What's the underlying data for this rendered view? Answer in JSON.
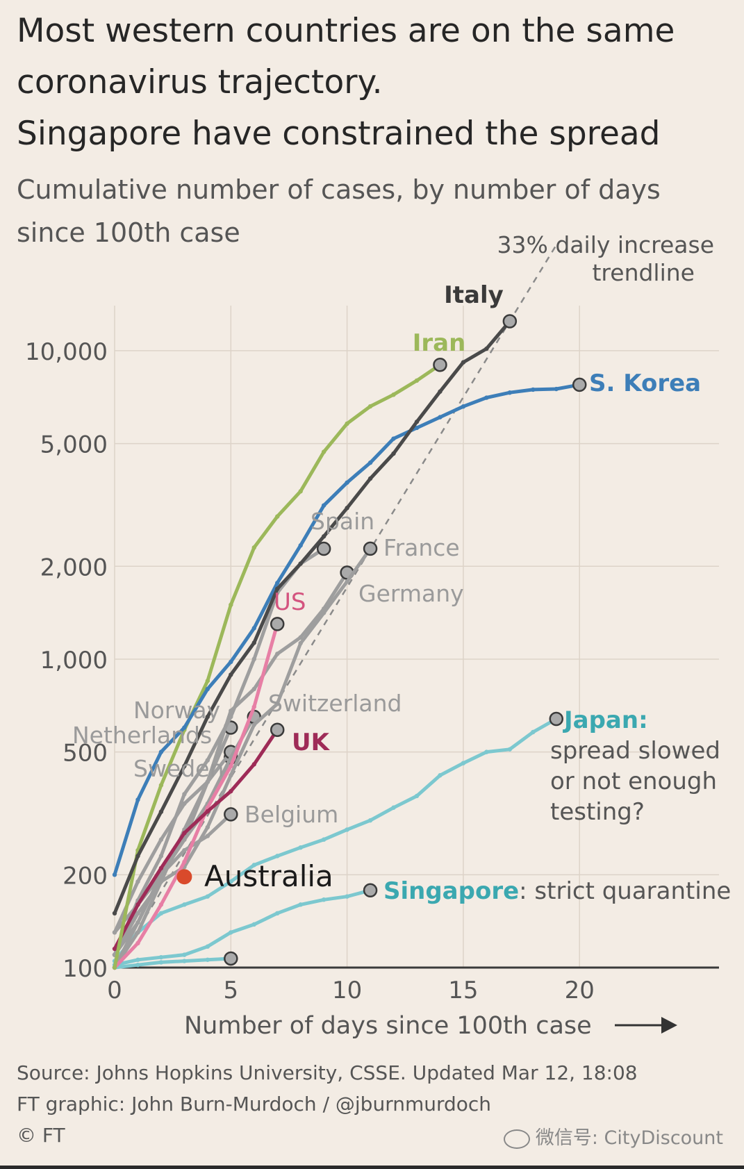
{
  "title_lines": [
    "Most western countries are on the same",
    "coronavirus trajectory.",
    "Singapore have constrained the spread"
  ],
  "subtitle_lines": [
    "Cumulative number of cases, by number of days",
    "since 100th case"
  ],
  "source_lines": [
    "Source: Johns Hopkins University, CSSE. Updated Mar 12, 18:08",
    "FT graphic: John Burn-Murdoch / @jburnmurdoch",
    "© FT"
  ],
  "watermark": "微信号: CityDiscount",
  "chart_data": {
    "type": "line",
    "xlabel": "Number of days since 100th case",
    "ylabel": "",
    "x_scale": "linear",
    "y_scale": "log",
    "xlim": [
      0,
      26
    ],
    "ylim": [
      100,
      14000
    ],
    "x_ticks": [
      0,
      5,
      10,
      15,
      20
    ],
    "x_tick_labels": [
      "0",
      "5",
      "10",
      "15",
      "20"
    ],
    "y_ticks": [
      100,
      200,
      500,
      1000,
      2000,
      5000,
      10000
    ],
    "y_tick_labels": [
      "100",
      "200",
      "500",
      "1,000",
      "2,000",
      "5,000",
      "10,000"
    ],
    "grid": true,
    "trendline": {
      "label_lines": [
        "33% daily increase",
        "trendline"
      ],
      "daily_growth": 1.33,
      "start": [
        0,
        100
      ],
      "end": [
        19,
        22000
      ],
      "color": "#8a8a8a"
    },
    "series": [
      {
        "name": "Iran",
        "color": "#9cb85a",
        "label_lines": [
          "Iran"
        ],
        "x": [
          0,
          1,
          2,
          3,
          4,
          5,
          6,
          7,
          8,
          9,
          10,
          11,
          12,
          13,
          14
        ],
        "y": [
          100,
          240,
          390,
          590,
          850,
          1500,
          2300,
          2900,
          3500,
          4700,
          5800,
          6600,
          7200,
          8000,
          9000
        ]
      },
      {
        "name": "Italy",
        "color": "#4a4a4a",
        "label_lines": [
          "Italy"
        ],
        "x": [
          0,
          1,
          2,
          3,
          4,
          5,
          6,
          7,
          8,
          9,
          10,
          11,
          12,
          13,
          14,
          15,
          16,
          17
        ],
        "y": [
          150,
          230,
          320,
          450,
          650,
          890,
          1130,
          1690,
          2040,
          2500,
          3090,
          3850,
          4640,
          5880,
          7370,
          9170,
          10150,
          12460
        ]
      },
      {
        "name": "S. Korea",
        "color": "#3d7eb8",
        "label_lines": [
          "S. Korea"
        ],
        "x": [
          0,
          1,
          2,
          3,
          4,
          5,
          6,
          7,
          8,
          9,
          10,
          11,
          12,
          13,
          14,
          15,
          16,
          17,
          18,
          19,
          20
        ],
        "y": [
          200,
          350,
          500,
          600,
          800,
          980,
          1260,
          1766,
          2337,
          3150,
          3736,
          4335,
          5186,
          5621,
          6088,
          6593,
          7041,
          7313,
          7478,
          7513,
          7755
        ]
      },
      {
        "name": "Spain",
        "color": "#9e9e9e",
        "label_lines": [
          "Spain"
        ],
        "x": [
          0,
          1,
          2,
          3,
          4,
          5,
          6,
          7,
          8,
          9
        ],
        "y": [
          110,
          165,
          230,
          365,
          470,
          650,
          1000,
          1640,
          2040,
          2280
        ]
      },
      {
        "name": "France",
        "color": "#9e9e9e",
        "label_lines": [
          "France"
        ],
        "x": [
          0,
          1,
          2,
          3,
          4,
          5,
          6,
          7,
          8,
          9,
          10,
          11
        ],
        "y": [
          100,
          130,
          190,
          212,
          285,
          420,
          613,
          716,
          1126,
          1412,
          1784,
          2281
        ]
      },
      {
        "name": "Germany",
        "color": "#9e9e9e",
        "label_lines": [
          "Germany"
        ],
        "x": [
          0,
          1,
          2,
          3,
          4,
          5,
          6,
          7,
          8,
          9,
          10
        ],
        "y": [
          130,
          160,
          200,
          260,
          400,
          680,
          800,
          1040,
          1176,
          1457,
          1908
        ]
      },
      {
        "name": "US",
        "color": "#e77fa5",
        "label_lines": [
          "US"
        ],
        "x": [
          0,
          1,
          2,
          3,
          4,
          5,
          6,
          7
        ],
        "y": [
          100,
          120,
          160,
          220,
          330,
          450,
          700,
          1300
        ]
      },
      {
        "name": "Switzerland",
        "color": "#9e9e9e",
        "label_lines": [
          "Switzerland"
        ],
        "x": [
          0,
          1,
          2,
          3,
          4,
          5,
          6
        ],
        "y": [
          110,
          140,
          200,
          260,
          340,
          480,
          650
        ]
      },
      {
        "name": "Norway",
        "color": "#9e9e9e",
        "label_lines": [
          "Norway"
        ],
        "x": [
          0,
          1,
          2,
          3,
          4,
          5
        ],
        "y": [
          110,
          150,
          190,
          280,
          400,
          600
        ]
      },
      {
        "name": "Netherlands",
        "color": "#9e9e9e",
        "label_lines": [
          "Netherlands"
        ],
        "x": [
          0,
          1,
          2,
          3,
          4,
          5
        ],
        "y": [
          130,
          190,
          260,
          340,
          400,
          500
        ]
      },
      {
        "name": "Sweden",
        "color": "#9e9e9e",
        "label_lines": [
          "Sweden"
        ],
        "x": [
          0,
          1,
          2,
          3,
          4,
          5
        ],
        "y": [
          100,
          140,
          200,
          260,
          330,
          480
        ]
      },
      {
        "name": "UK",
        "color": "#9e2b57",
        "label_lines": [
          "UK"
        ],
        "x": [
          0,
          1,
          2,
          3,
          4,
          5,
          6,
          7
        ],
        "y": [
          115,
          160,
          210,
          273,
          321,
          373,
          456,
          590
        ]
      },
      {
        "name": "Belgium",
        "color": "#9e9e9e",
        "label_lines": [
          "Belgium"
        ],
        "x": [
          0,
          1,
          2,
          3,
          4,
          5
        ],
        "y": [
          110,
          160,
          200,
          240,
          267,
          314
        ]
      },
      {
        "name": "Australia",
        "color": "#d94a2b",
        "label_lines": [
          "Australia"
        ],
        "x": [
          3
        ],
        "y": [
          197
        ]
      },
      {
        "name": "Japan",
        "color": "#7cc8cf",
        "label_lines": [
          "Japan:",
          "spread slowed",
          "or not enough",
          "testing?"
        ],
        "x": [
          0,
          1,
          2,
          3,
          4,
          5,
          6,
          7,
          8,
          9,
          10,
          11,
          12,
          13,
          14,
          15,
          16,
          17,
          18,
          19
        ],
        "y": [
          105,
          130,
          150,
          160,
          170,
          190,
          215,
          230,
          245,
          260,
          280,
          300,
          330,
          360,
          420,
          460,
          500,
          510,
          580,
          640
        ]
      },
      {
        "name": "Singapore",
        "color": "#7cc8cf",
        "label_lines": [
          "Singapore",
          ": strict quarantine"
        ],
        "x": [
          0,
          1,
          2,
          3,
          4,
          5,
          6,
          7,
          8,
          9,
          10,
          11
        ],
        "y": [
          102,
          106,
          108,
          110,
          117,
          130,
          138,
          150,
          160,
          166,
          170,
          178
        ]
      },
      {
        "name": "",
        "color": "#7cc8cf",
        "label_lines": [],
        "x": [
          0,
          1,
          2,
          3,
          4,
          5
        ],
        "y": [
          100,
          102,
          104,
          105,
          106,
          107
        ]
      }
    ]
  }
}
